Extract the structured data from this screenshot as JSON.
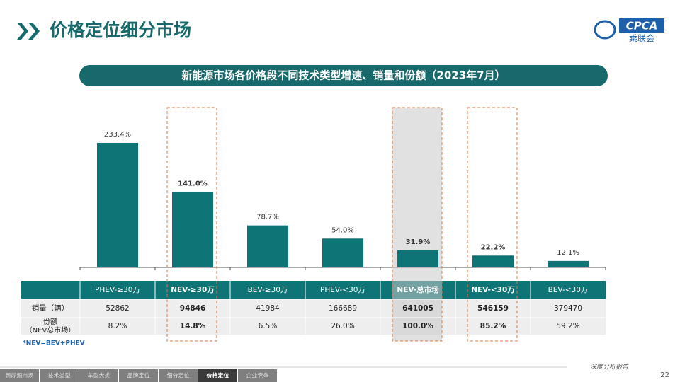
{
  "header": {
    "title": "价格定位细分市场",
    "logo": "CPCA",
    "logo_sub": "乘联会"
  },
  "chart_data": {
    "type": "bar",
    "title": "新能源市场各价格段不同技术类型增速、销量和份额（2023年7月）",
    "categories": [
      "PHEV-≥30万",
      "NEV-≥30万",
      "BEV-≥30万",
      "PHEV-<30万",
      "NEV-总市场",
      "NEV-<30万",
      "BEV-<30万"
    ],
    "values": [
      233.4,
      141.0,
      78.7,
      54.0,
      31.9,
      22.2,
      12.1
    ],
    "value_labels": [
      "233.4%",
      "141.0%",
      "78.7%",
      "54.0%",
      "31.9%",
      "22.2%",
      "12.1%"
    ],
    "color": "#0f7476"
  },
  "table": {
    "sales_label": "销量（辆）",
    "share_label": [
      "份额",
      "（NEV总市场）"
    ],
    "sales": [
      52862,
      94846,
      41984,
      166689,
      641005,
      546159,
      379470
    ],
    "share": [
      "8.2%",
      "14.8%",
      "6.5%",
      "26.0%",
      "100.0%",
      "85.2%",
      "59.2%"
    ]
  },
  "footnote": "*NEV=BEV+PHEV",
  "footer": {
    "tagline": "深度分析报告",
    "page": "22",
    "nav": [
      "新能源市场",
      "技术类型",
      "车型大类",
      "品牌定位",
      "细分定位",
      "价格定位",
      "企业竞争"
    ]
  }
}
